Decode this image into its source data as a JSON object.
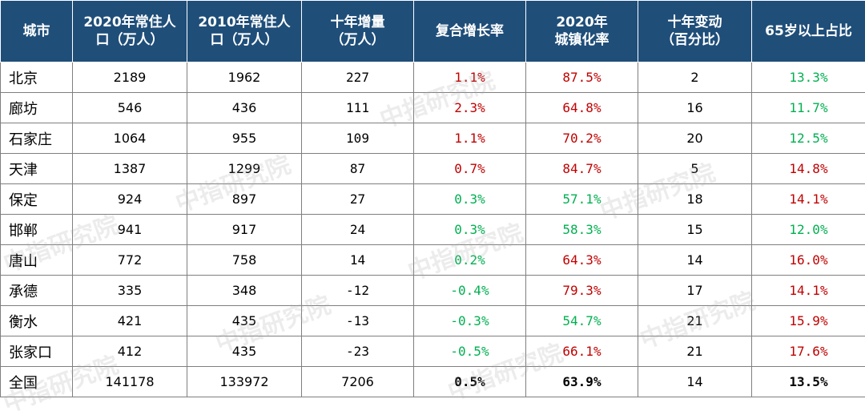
{
  "chart_data": {
    "type": "table",
    "columns": [
      "城市",
      "2020年常住人口（万人）",
      "2010年常住人口（万人）",
      "十年增量（万人）",
      "复合增长率",
      "2020年城镇化率",
      "十年变动（百分比）",
      "65岁以上占比"
    ],
    "header_lines": [
      [
        "城市"
      ],
      [
        "2020年常住人",
        "口（万人）"
      ],
      [
        "2010年常住人",
        "口（万人）"
      ],
      [
        "十年增量",
        "（万人）"
      ],
      [
        "复合增长率"
      ],
      [
        "2020年",
        "城镇化率"
      ],
      [
        "十年变动",
        "（百分比）"
      ],
      [
        "65岁以上占比"
      ]
    ],
    "rows": [
      {
        "city": "北京",
        "pop2020": "2189",
        "pop2010": "1962",
        "increase": "227",
        "cagr": "1.1%",
        "urban": "87.5%",
        "change": "2",
        "elderly": "13.3%"
      },
      {
        "city": "廊坊",
        "pop2020": "546",
        "pop2010": "436",
        "increase": "111",
        "cagr": "2.3%",
        "urban": "64.8%",
        "change": "16",
        "elderly": "11.7%"
      },
      {
        "city": "石家庄",
        "pop2020": "1064",
        "pop2010": "955",
        "increase": "109",
        "cagr": "1.1%",
        "urban": "70.2%",
        "change": "20",
        "elderly": "12.5%"
      },
      {
        "city": "天津",
        "pop2020": "1387",
        "pop2010": "1299",
        "increase": "87",
        "cagr": "0.7%",
        "urban": "84.7%",
        "change": "5",
        "elderly": "14.8%"
      },
      {
        "city": "保定",
        "pop2020": "924",
        "pop2010": "897",
        "increase": "27",
        "cagr": "0.3%",
        "urban": "57.1%",
        "change": "18",
        "elderly": "14.1%"
      },
      {
        "city": "邯郸",
        "pop2020": "941",
        "pop2010": "917",
        "increase": "24",
        "cagr": "0.3%",
        "urban": "58.3%",
        "change": "15",
        "elderly": "12.0%"
      },
      {
        "city": "唐山",
        "pop2020": "772",
        "pop2010": "758",
        "increase": "14",
        "cagr": "0.2%",
        "urban": "64.3%",
        "change": "14",
        "elderly": "16.0%"
      },
      {
        "city": "承德",
        "pop2020": "335",
        "pop2010": "348",
        "increase": "-12",
        "cagr": "-0.4%",
        "urban": "79.3%",
        "change": "17",
        "elderly": "14.1%"
      },
      {
        "city": "衡水",
        "pop2020": "421",
        "pop2010": "435",
        "increase": "-13",
        "cagr": "-0.3%",
        "urban": "54.7%",
        "change": "21",
        "elderly": "15.9%"
      },
      {
        "city": "张家口",
        "pop2020": "412",
        "pop2010": "435",
        "increase": "-23",
        "cagr": "-0.5%",
        "urban": "66.1%",
        "change": "21",
        "elderly": "17.6%"
      }
    ],
    "total": {
      "city": "全国",
      "pop2020": "141178",
      "pop2010": "133972",
      "increase": "7206",
      "cagr": "0.5%",
      "urban": "63.9%",
      "change": "14",
      "elderly": "13.5%"
    },
    "cell_colors": {
      "cagr": [
        "red",
        "red",
        "red",
        "red",
        "green",
        "green",
        "green",
        "green",
        "green",
        "green"
      ],
      "urban": [
        "red",
        "red",
        "red",
        "red",
        "green",
        "green",
        "red",
        "red",
        "green",
        "red"
      ],
      "elderly": [
        "green",
        "green",
        "green",
        "red",
        "red",
        "green",
        "red",
        "red",
        "red",
        "red"
      ]
    }
  },
  "watermark": "中指研究院",
  "colors": {
    "header_bg": "#1f4e79",
    "header_text": "#ffffff",
    "red": "#c00000",
    "green": "#00b050",
    "border": "#7f7f7f"
  }
}
